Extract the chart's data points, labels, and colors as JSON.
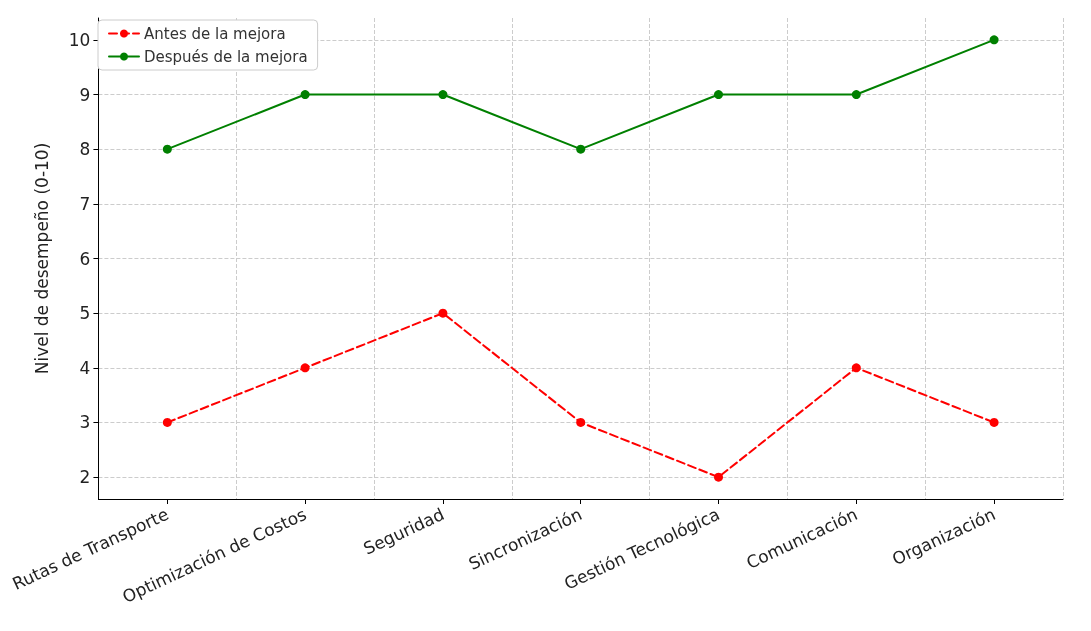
{
  "chart_data": {
    "type": "line",
    "ylabel": "Nivel de desempeño (0-10)",
    "categories": [
      "Rutas de Transporte",
      "Optimización de Costos",
      "Seguridad",
      "Sincronización",
      "Gestión Tecnológica",
      "Comunicación",
      "Organización"
    ],
    "series": [
      {
        "name": "Antes de la mejora",
        "color": "#ff0000",
        "line_style": "dashed",
        "values": [
          3,
          4,
          5,
          3,
          2,
          4,
          3
        ]
      },
      {
        "name": "Después de la mejora",
        "color": "#008000",
        "line_style": "solid",
        "values": [
          8,
          9,
          9,
          8,
          9,
          9,
          10
        ]
      }
    ],
    "ylim": [
      1.6,
      10.4
    ],
    "yticks": [
      2,
      3,
      4,
      5,
      6,
      7,
      8,
      9,
      10
    ],
    "grid": true,
    "legend": "top left",
    "marker": "circle"
  }
}
